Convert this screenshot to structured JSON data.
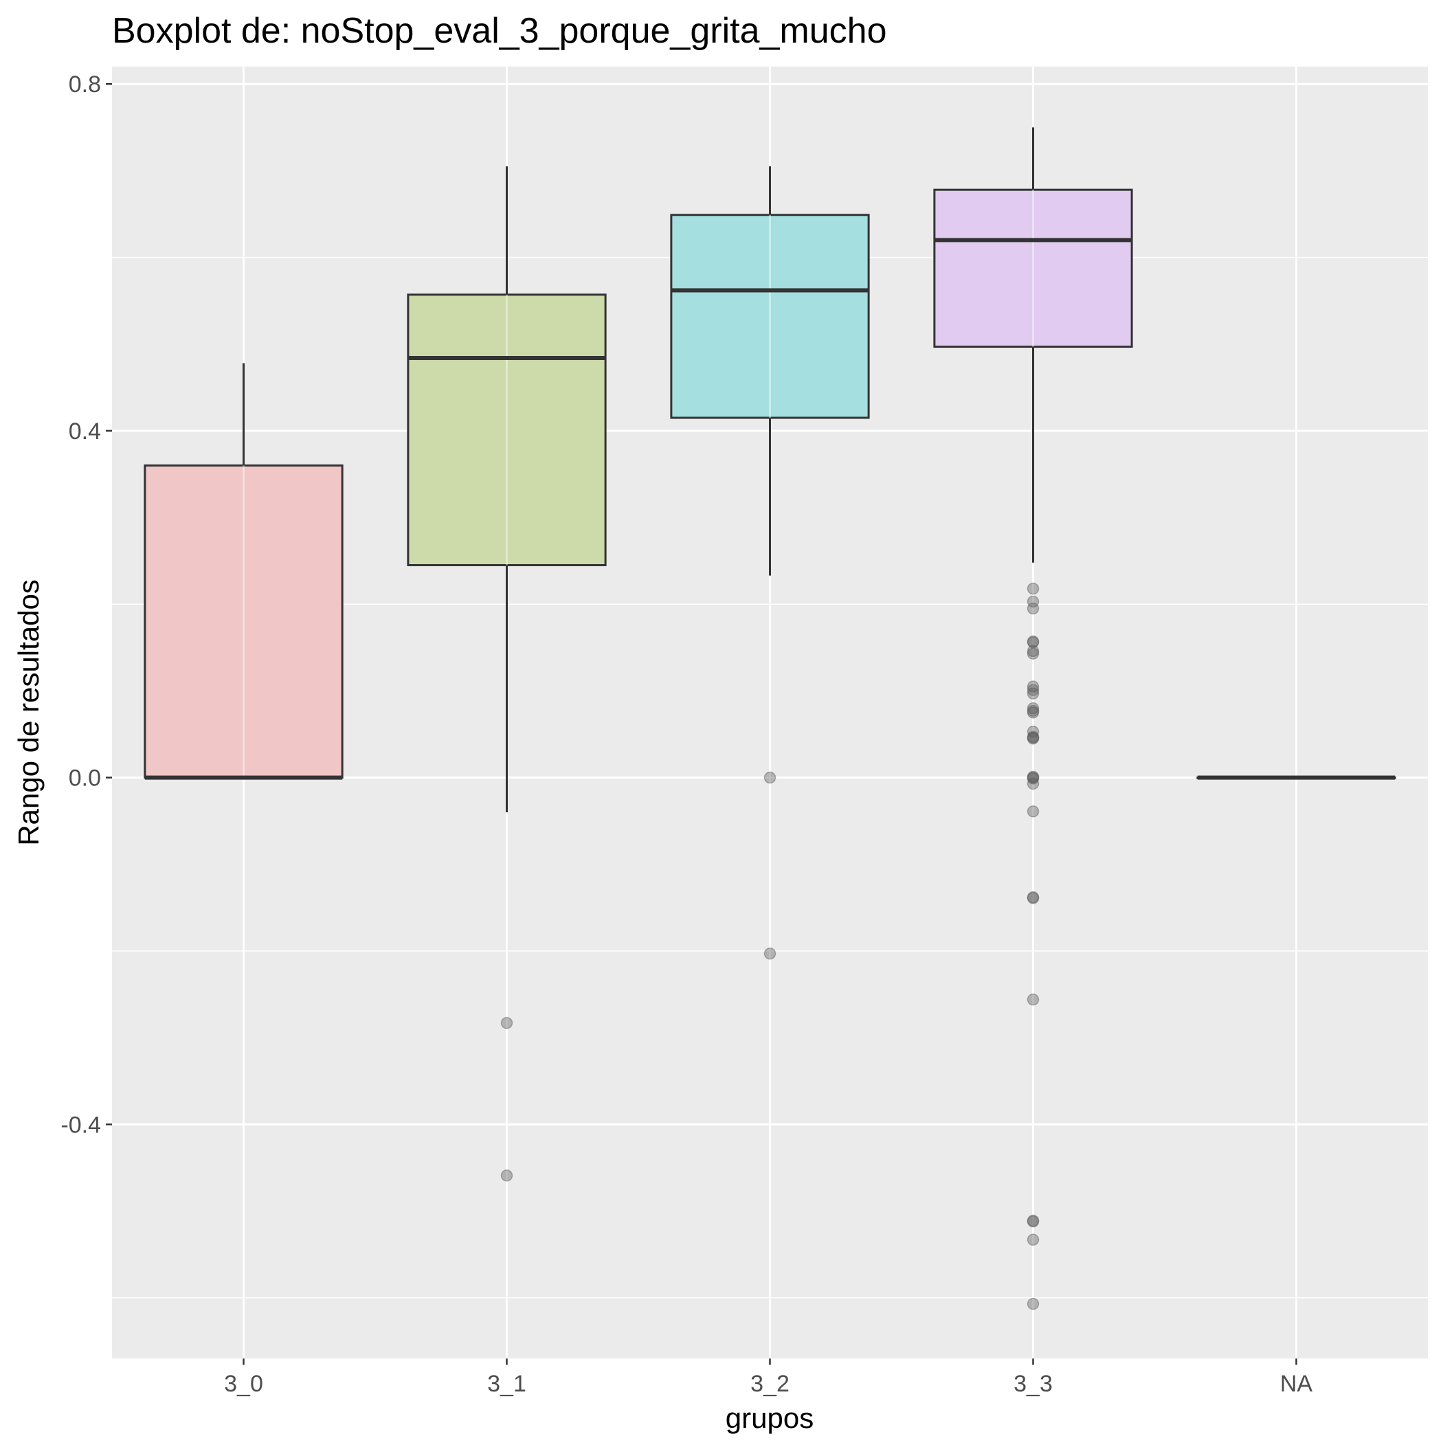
{
  "chart_data": {
    "type": "boxplot",
    "title": "Boxplot de: noStop_eval_3_porque_grita_mucho",
    "xlabel": "grupos",
    "ylabel": "Rango de resultados",
    "ylim": [
      -0.67,
      0.82
    ],
    "y_ticks": [
      -0.4,
      0.0,
      0.4,
      0.8
    ],
    "y_tick_labels": [
      "-0.4",
      "0.0",
      "0.4",
      "0.8"
    ],
    "categories": [
      "3_0",
      "3_1",
      "3_2",
      "3_3",
      "NA"
    ],
    "grid": true,
    "legend": "none",
    "colors": {
      "panel_background": "#ebebeb",
      "grid": "#ffffff",
      "box_outline": "#333333",
      "outlier": "#7f7f7f"
    },
    "boxes": [
      {
        "group": "3_0",
        "fill": "#f0c6c6",
        "whisker_low": 0.0,
        "q1": 0.0,
        "median": 0.0,
        "q3": 0.36,
        "whisker_high": 0.478,
        "outliers": []
      },
      {
        "group": "3_1",
        "fill": "#cddaa9",
        "whisker_low": -0.04,
        "q1": 0.245,
        "median": 0.484,
        "q3": 0.557,
        "whisker_high": 0.705,
        "outliers": [
          -0.283,
          -0.459
        ]
      },
      {
        "group": "3_2",
        "fill": "#a6dfdf",
        "whisker_low": 0.233,
        "q1": 0.415,
        "median": 0.562,
        "q3": 0.649,
        "whisker_high": 0.705,
        "outliers": [
          0.0,
          -0.203
        ]
      },
      {
        "group": "3_3",
        "fill": "#e1cbf0",
        "whisker_low": 0.248,
        "q1": 0.497,
        "median": 0.62,
        "q3": 0.678,
        "whisker_high": 0.75,
        "outliers": [
          0.218,
          0.203,
          0.195,
          0.157,
          0.156,
          0.146,
          0.143,
          0.105,
          0.101,
          0.097,
          0.08,
          0.077,
          0.075,
          0.053,
          0.047,
          0.046,
          0.045,
          0.001,
          0.0,
          -0.001,
          -0.007,
          -0.039,
          -0.138,
          -0.139,
          -0.256,
          -0.511,
          -0.512,
          -0.533,
          -0.607
        ]
      },
      {
        "group": "NA",
        "fill": "#f2c6e8",
        "whisker_low": 0.0,
        "q1": 0.0,
        "median": 0.0,
        "q3": 0.0,
        "whisker_high": 0.0,
        "outliers": []
      }
    ]
  }
}
